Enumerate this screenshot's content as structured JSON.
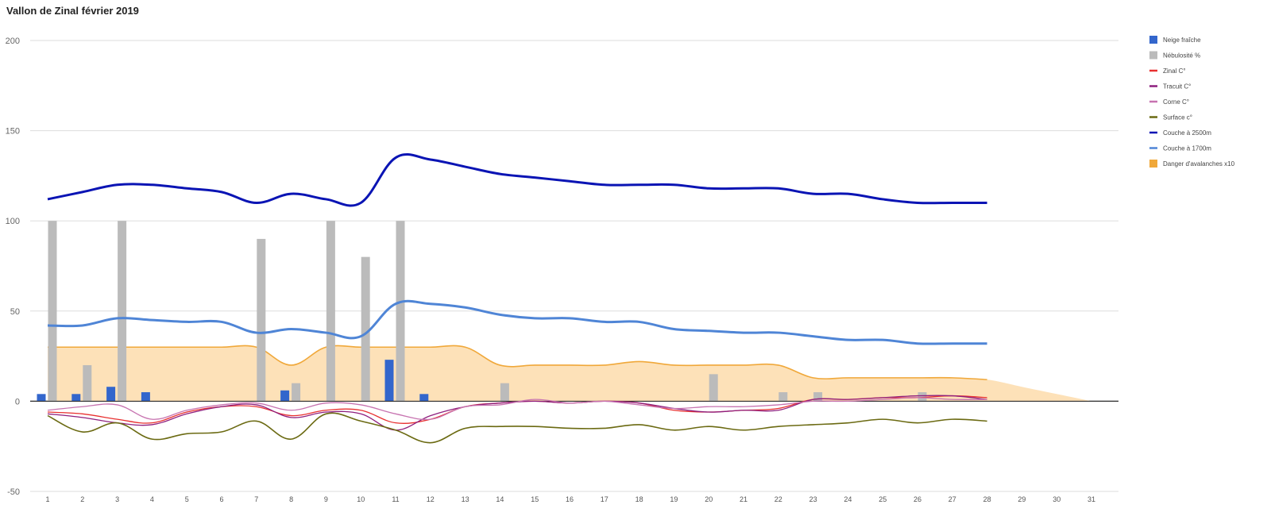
{
  "chart_data": {
    "type": "line",
    "title": "Vallon de Zinal février 2019",
    "xlabel": "",
    "ylabel": "",
    "ylim": [
      -50,
      200
    ],
    "yticks": [
      -50,
      0,
      50,
      100,
      150,
      200
    ],
    "categories": [
      1,
      2,
      3,
      4,
      5,
      6,
      7,
      8,
      9,
      10,
      11,
      12,
      13,
      14,
      15,
      16,
      17,
      18,
      19,
      20,
      21,
      22,
      23,
      24,
      25,
      26,
      27,
      28,
      29,
      30,
      31
    ],
    "legend_position": "right",
    "grid": true,
    "bar_series": [
      {
        "name": "Neige fraîche",
        "color": "#3366cc",
        "values": [
          4,
          4,
          8,
          5,
          0,
          0,
          0,
          6,
          0,
          0,
          23,
          4,
          0,
          0,
          0,
          0,
          0,
          0,
          0,
          0,
          0,
          0,
          0,
          0,
          0,
          0,
          0,
          0,
          null,
          null,
          null
        ]
      },
      {
        "name": "Nébulosité %",
        "color": "#bbbbbb",
        "values": [
          100,
          20,
          100,
          0,
          0,
          0,
          90,
          10,
          100,
          80,
          100,
          0,
          0,
          10,
          0,
          0,
          0,
          0,
          0,
          15,
          0,
          5,
          5,
          0,
          0,
          5,
          0,
          0,
          null,
          null,
          null
        ]
      }
    ],
    "line_series": [
      {
        "name": "Zinal C°",
        "color": "#e83030",
        "values": [
          -6,
          -7,
          -10,
          -12,
          -6,
          -3,
          -3,
          -8,
          -5,
          -5,
          -12,
          -10,
          -3,
          -1,
          0,
          -1,
          0,
          -1,
          -5,
          -6,
          -5,
          -4,
          1,
          1,
          2,
          2,
          3,
          2,
          null,
          null,
          null
        ]
      },
      {
        "name": "Tracuit C°",
        "color": "#8e1f7e",
        "values": [
          -7,
          -9,
          -12,
          -13,
          -7,
          -3,
          -2,
          -9,
          -6,
          -7,
          -16,
          -8,
          -3,
          -1,
          0,
          -1,
          0,
          -1,
          -4,
          -6,
          -5,
          -5,
          1,
          1,
          2,
          3,
          3,
          1,
          null,
          null,
          null
        ]
      },
      {
        "name": "Corne C°",
        "color": "#c773b0",
        "values": [
          -5,
          -3,
          -2,
          -10,
          -5,
          -2,
          -1,
          -5,
          -1,
          -2,
          -7,
          -10,
          -3,
          -2,
          1,
          -1,
          0,
          -2,
          -4,
          -3,
          -3,
          -2,
          0,
          0,
          1,
          2,
          1,
          1,
          null,
          null,
          null
        ]
      },
      {
        "name": "Surface c°",
        "color": "#6b6a12",
        "values": [
          -8,
          -17,
          -12,
          -21,
          -18,
          -17,
          -11,
          -21,
          -7,
          -11,
          -16,
          -23,
          -15,
          -14,
          -14,
          -15,
          -15,
          -13,
          -16,
          -14,
          -16,
          -14,
          -13,
          -12,
          -10,
          -12,
          -10,
          -11,
          null,
          null,
          null
        ]
      },
      {
        "name": "Couche à 2500m",
        "color": "#0a14b4",
        "values": [
          112,
          116,
          120,
          120,
          118,
          116,
          110,
          115,
          112,
          110,
          135,
          134,
          130,
          126,
          124,
          122,
          120,
          120,
          120,
          118,
          118,
          118,
          115,
          115,
          112,
          110,
          110,
          110,
          null,
          null,
          null
        ]
      },
      {
        "name": "Couche à 1700m",
        "color": "#4f85d6",
        "values": [
          42,
          42,
          46,
          45,
          44,
          44,
          38,
          40,
          38,
          36,
          54,
          54,
          52,
          48,
          46,
          46,
          44,
          44,
          40,
          39,
          38,
          38,
          36,
          34,
          34,
          32,
          32,
          32,
          null,
          null,
          null
        ]
      }
    ],
    "area_series": {
      "name": "Danger d'avalanches x10",
      "color": "#f0a83a",
      "fill": "#fddcac",
      "values": [
        30,
        30,
        30,
        30,
        30,
        30,
        30,
        20,
        30,
        30,
        30,
        30,
        30,
        20,
        20,
        20,
        20,
        22,
        20,
        20,
        20,
        20,
        13,
        13,
        13,
        13,
        13,
        12,
        8,
        4,
        0
      ]
    },
    "legend": [
      {
        "label": "Neige fraîche",
        "color": "#3366cc",
        "kind": "square"
      },
      {
        "label": "Nébulosité %",
        "color": "#bbbbbb",
        "kind": "square"
      },
      {
        "label": "Zinal C°",
        "color": "#e83030",
        "kind": "line"
      },
      {
        "label": "Tracuit C°",
        "color": "#8e1f7e",
        "kind": "line"
      },
      {
        "label": "Corne C°",
        "color": "#c773b0",
        "kind": "line"
      },
      {
        "label": "Surface c°",
        "color": "#6b6a12",
        "kind": "line"
      },
      {
        "label": "Couche à 2500m",
        "color": "#0a14b4",
        "kind": "line"
      },
      {
        "label": "Couche à 1700m",
        "color": "#4f85d6",
        "kind": "line"
      },
      {
        "label": "Danger d'avalanches x10",
        "color": "#f0a83a",
        "kind": "square"
      }
    ]
  }
}
